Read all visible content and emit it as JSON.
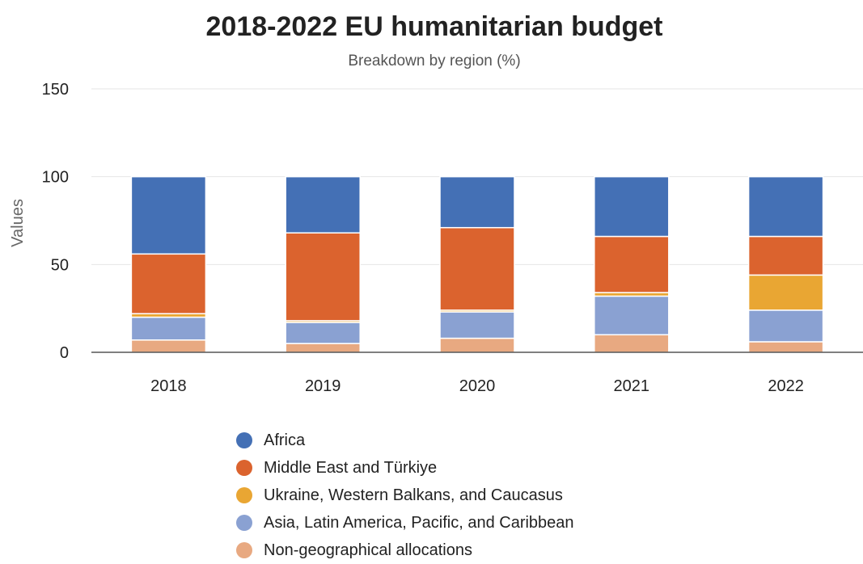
{
  "chart_data": {
    "type": "bar",
    "stacked": true,
    "title": "2018-2022 EU humanitarian budget",
    "subtitle": "Breakdown by region (%)",
    "xlabel": "",
    "ylabel": "Values",
    "ylim": [
      0,
      150
    ],
    "yticks": [
      0,
      50,
      100,
      150
    ],
    "grid": true,
    "legend_position": "bottom",
    "categories": [
      "2018",
      "2019",
      "2020",
      "2021",
      "2022"
    ],
    "series": [
      {
        "name": "Non-geographical allocations",
        "color": "#e8a981",
        "values": [
          7,
          5,
          8,
          10,
          6
        ]
      },
      {
        "name": "Asia, Latin America, Pacific, and Caribbean",
        "color": "#8aa1d2",
        "values": [
          13,
          12,
          15,
          22,
          18
        ]
      },
      {
        "name": "Ukraine, Western Balkans, and Caucasus",
        "color": "#e9a633",
        "values": [
          2,
          1,
          1,
          2,
          20
        ]
      },
      {
        "name": "Middle East and Türkiye",
        "color": "#db632e",
        "values": [
          34,
          50,
          47,
          32,
          22
        ]
      },
      {
        "name": "Africa",
        "color": "#4470b5",
        "values": [
          44,
          32,
          29,
          34,
          34
        ]
      }
    ],
    "legend_order": [
      "Africa",
      "Middle East and Türkiye",
      "Ukraine, Western Balkans, and Caucasus",
      "Asia, Latin America, Pacific, and Caribbean",
      "Non-geographical allocations"
    ]
  }
}
